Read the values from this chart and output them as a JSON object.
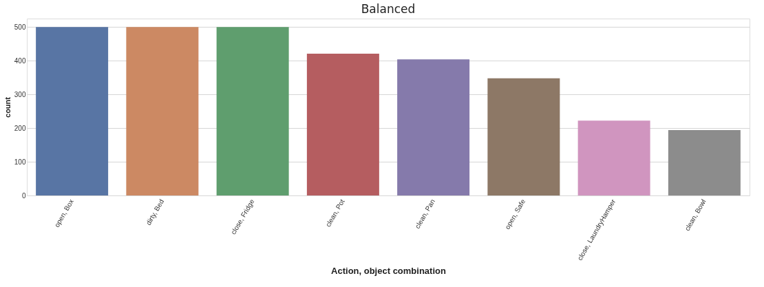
{
  "chart_data": {
    "type": "bar",
    "title": "Balanced",
    "xlabel": "Action, object combination",
    "ylabel": "count",
    "categories": [
      "open, Box",
      "dirty, Bed",
      "close, Fridge",
      "clean, Pot",
      "clean, Pan",
      "open, Safe",
      "close, LaundryHamper",
      "clean, Bowl"
    ],
    "values": [
      500,
      500,
      500,
      421,
      404,
      348,
      222,
      194
    ],
    "colors": [
      "#5875a4",
      "#cc8963",
      "#5f9e6e",
      "#b55d60",
      "#857aab",
      "#8d7866",
      "#d095bf",
      "#8c8c8c"
    ],
    "ylim": [
      0,
      525
    ],
    "yticks": [
      0,
      100,
      200,
      300,
      400,
      500
    ],
    "grid": "y"
  }
}
